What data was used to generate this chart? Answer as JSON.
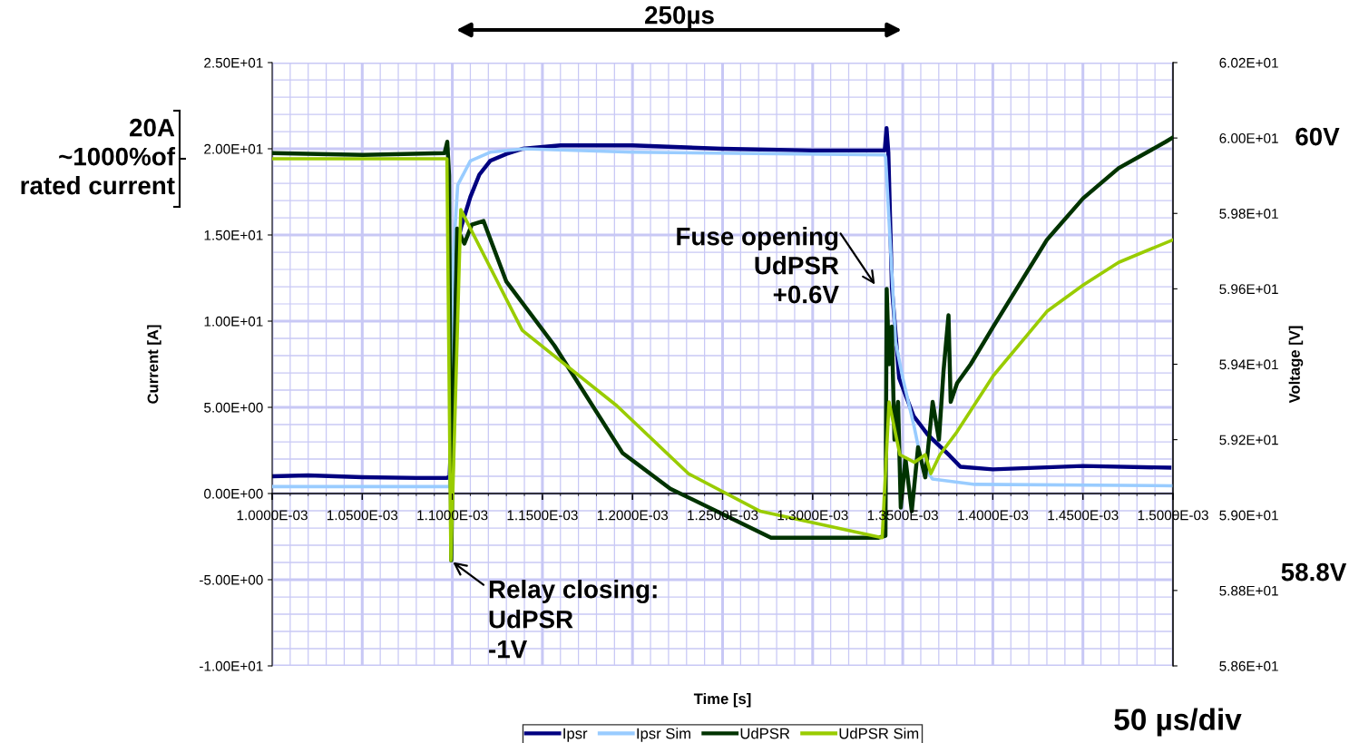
{
  "chart_data": {
    "type": "line",
    "xlabel": "Time [s]",
    "ylabel": "Current [A]",
    "y2label": "Voltage [V]",
    "xlim": [
      0.001,
      0.0015
    ],
    "xticks": [
      {
        "value": 0.001,
        "label": "1.0000E-03"
      },
      {
        "value": 0.00105,
        "label": "1.0500E-03"
      },
      {
        "value": 0.0011,
        "label": "1.1000E-03"
      },
      {
        "value": 0.00115,
        "label": "1.1500E-03"
      },
      {
        "value": 0.0012,
        "label": "1.2000E-03"
      },
      {
        "value": 0.00125,
        "label": "1.2500E-03"
      },
      {
        "value": 0.0013,
        "label": "1.3000E-03"
      },
      {
        "value": 0.00135,
        "label": "1.3500E-03"
      },
      {
        "value": 0.0014,
        "label": "1.4000E-03"
      },
      {
        "value": 0.00145,
        "label": "1.4500E-03"
      },
      {
        "value": 0.0015,
        "label": "1.5000E-03"
      }
    ],
    "ylim": [
      -10,
      25
    ],
    "yticks": [
      {
        "value": -10,
        "label": "-1.00E+01"
      },
      {
        "value": -5,
        "label": "-5.00E+00"
      },
      {
        "value": 0,
        "label": "0.00E+00"
      },
      {
        "value": 5,
        "label": "5.00E+00"
      },
      {
        "value": 10,
        "label": "1.00E+01"
      },
      {
        "value": 15,
        "label": "1.50E+01"
      },
      {
        "value": 20,
        "label": "2.00E+01"
      },
      {
        "value": 25,
        "label": "2.50E+01"
      }
    ],
    "y2lim": [
      58.6,
      60.2
    ],
    "y2ticks": [
      {
        "value": 58.6,
        "label": "5.86E+01"
      },
      {
        "value": 58.8,
        "label": "5.88E+01"
      },
      {
        "value": 59.0,
        "label": "5.90E+01"
      },
      {
        "value": 59.2,
        "label": "5.92E+01"
      },
      {
        "value": 59.4,
        "label": "5.94E+01"
      },
      {
        "value": 59.6,
        "label": "5.96E+01"
      },
      {
        "value": 59.8,
        "label": "5.98E+01"
      },
      {
        "value": 60.0,
        "label": "6.00E+01"
      },
      {
        "value": 60.2,
        "label": "6.02E+01"
      }
    ],
    "grid": true,
    "legend": "bottom",
    "marker": "none",
    "line_style": "solid",
    "series": [
      {
        "name": "Ipsr",
        "color": "#000080",
        "x": [
          0.001,
          0.00102,
          0.00105,
          0.00108,
          0.001097,
          0.0010985,
          0.0011,
          0.001101,
          0.001105,
          0.00111,
          0.001115,
          0.001121,
          0.00113,
          0.001139,
          0.00116,
          0.0012,
          0.00125,
          0.0013,
          0.00134,
          0.001341,
          0.001342,
          0.001344,
          0.001348,
          0.001356,
          0.001364,
          0.001376,
          0.001382,
          0.0014,
          0.00145,
          0.001498
        ],
        "values": [
          1.0,
          1.05,
          0.95,
          0.9,
          0.9,
          1.0,
          5,
          13.8,
          15.5,
          17.2,
          18.5,
          19.3,
          19.7,
          20.0,
          20.2,
          20.2,
          20.0,
          19.9,
          19.9,
          21.2,
          19.8,
          11.9,
          6.7,
          4.5,
          3.4,
          2.2,
          1.55,
          1.4,
          1.6,
          1.5
        ]
      },
      {
        "name": "Ipsr Sim",
        "color": "#99ccff",
        "x": [
          0.001,
          0.0010985,
          0.0011005,
          0.001103,
          0.00111,
          0.001121,
          0.00114,
          0.0012,
          0.00134,
          0.0013405,
          0.001346,
          0.00135,
          0.0013565,
          0.0013605,
          0.0013665,
          0.00139,
          0.0015
        ],
        "values": [
          0.4,
          0.4,
          13.7,
          17.9,
          19.3,
          19.8,
          20.0,
          19.8,
          19.65,
          19.5,
          8.8,
          6.7,
          3.8,
          1.76,
          0.84,
          0.53,
          0.45
        ]
      },
      {
        "name": "UdPSR",
        "color": "#003300",
        "axis": "y2",
        "x": [
          0.001,
          0.0010504,
          0.0010957,
          0.0010972,
          0.0010982,
          0.0010994,
          0.0011007,
          0.0011027,
          0.0011067,
          0.0011108,
          0.0011173,
          0.0011299,
          0.0011566,
          0.0011944,
          0.001221,
          0.0012511,
          0.0012769,
          0.0013366,
          0.0013404,
          0.0013411,
          0.0013424,
          0.0013439,
          0.0013454,
          0.0013474,
          0.0013489,
          0.0013515,
          0.001355,
          0.0013585,
          0.0013625,
          0.0013666,
          0.0013701,
          0.0013726,
          0.0013754,
          0.0013766,
          0.0013802,
          0.0013877,
          0.0014003,
          0.00143,
          0.0014501,
          0.0014698,
          0.001496,
          0.0014995
        ],
        "values": [
          59.96,
          59.955,
          59.96,
          59.99,
          59.9,
          58.88,
          59.3,
          59.76,
          59.72,
          59.77,
          59.78,
          59.62,
          59.45,
          59.165,
          59.07,
          59.0,
          58.94,
          58.94,
          58.945,
          59.6,
          59.4,
          59.5,
          59.2,
          59.3,
          59.02,
          59.15,
          59.01,
          59.18,
          59.1,
          59.3,
          59.2,
          59.38,
          59.53,
          59.3,
          59.35,
          59.4,
          59.5,
          59.73,
          59.84,
          59.92,
          59.99,
          60.0
        ]
      },
      {
        "name": "UdPSR Sim",
        "color": "#99cc00",
        "axis": "y2",
        "x": [
          0.001,
          0.001097,
          0.0010992,
          0.0011047,
          0.0011388,
          0.0011913,
          0.001231,
          0.0012709,
          0.0013386,
          0.0013424,
          0.0013484,
          0.0013565,
          0.0013625,
          0.0013656,
          0.0013706,
          0.00138,
          0.0014003,
          0.00143,
          0.0014501,
          0.0014698,
          0.0015
        ],
        "values": [
          59.945,
          59.945,
          58.88,
          59.81,
          59.49,
          59.29,
          59.11,
          59.01,
          58.94,
          59.3,
          59.16,
          59.14,
          59.16,
          59.11,
          59.16,
          59.22,
          59.37,
          59.54,
          59.61,
          59.67,
          59.73
        ]
      }
    ],
    "annotations": [
      "250µs",
      "20A\n~1000%of\nrated current",
      "60V",
      "58.8V",
      "50 µs/div",
      {
        "text": "Relay closing:\nUdPSR\n-1V",
        "x": 0.0010992,
        "y": -3.9
      },
      "Fuse opening\nUdPSR\n+0.6V"
    ]
  }
}
